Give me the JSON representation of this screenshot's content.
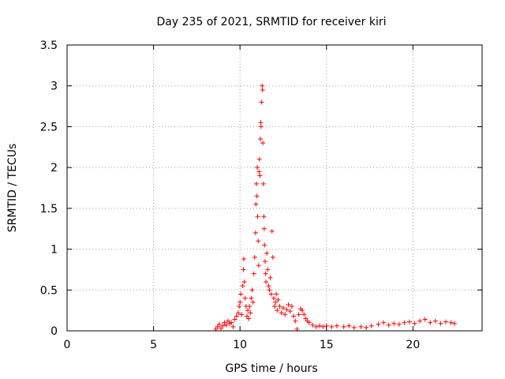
{
  "chart_data": {
    "type": "scatter",
    "title": "Day 235 of 2021, SRMTID for receiver kiri",
    "xlabel": "GPS time / hours",
    "ylabel": "SRMTID / TECUs",
    "xlim": [
      0,
      24
    ],
    "ylim": [
      0,
      3.5
    ],
    "xticks": [
      0,
      5,
      10,
      15,
      20
    ],
    "xtick_labels": [
      "0",
      "5",
      "10",
      "15",
      "20"
    ],
    "yticks": [
      0,
      0.5,
      1,
      1.5,
      2,
      2.5,
      3,
      3.5
    ],
    "ytick_labels": [
      "0",
      "0.5",
      "1",
      "1.5",
      "2",
      "2.5",
      "3",
      "3.5"
    ],
    "grid": true,
    "marker": "+",
    "color": "#ff0000",
    "series": [
      {
        "name": "kiri",
        "points": [
          [
            8.6,
            0.02
          ],
          [
            8.7,
            0.05
          ],
          [
            8.8,
            0.08
          ],
          [
            8.9,
            0.03
          ],
          [
            9.0,
            0.06
          ],
          [
            9.1,
            0.1
          ],
          [
            9.2,
            0.07
          ],
          [
            9.3,
            0.12
          ],
          [
            9.4,
            0.09
          ],
          [
            9.5,
            0.1
          ],
          [
            9.6,
            0.05
          ],
          [
            9.7,
            0.14
          ],
          [
            9.8,
            0.18
          ],
          [
            9.9,
            0.22
          ],
          [
            9.95,
            0.3
          ],
          [
            10.0,
            0.35
          ],
          [
            10.05,
            0.45
          ],
          [
            10.1,
            0.2
          ],
          [
            10.15,
            0.55
          ],
          [
            10.2,
            0.75
          ],
          [
            10.22,
            0.88
          ],
          [
            10.25,
            0.6
          ],
          [
            10.3,
            0.4
          ],
          [
            10.35,
            0.3
          ],
          [
            10.4,
            0.18
          ],
          [
            10.45,
            0.25
          ],
          [
            10.5,
            0.15
          ],
          [
            10.55,
            0.3
          ],
          [
            10.6,
            0.22
          ],
          [
            10.65,
            0.4
          ],
          [
            10.7,
            0.5
          ],
          [
            10.75,
            0.35
          ],
          [
            10.8,
            0.7
          ],
          [
            10.85,
            0.9
          ],
          [
            10.9,
            1.2
          ],
          [
            10.92,
            1.55
          ],
          [
            10.95,
            1.8
          ],
          [
            10.98,
            1.65
          ],
          [
            11.0,
            2.0
          ],
          [
            11.02,
            1.4
          ],
          [
            11.05,
            1.1
          ],
          [
            11.08,
            0.8
          ],
          [
            11.1,
            1.95
          ],
          [
            11.12,
            2.1
          ],
          [
            11.15,
            1.9
          ],
          [
            11.18,
            2.35
          ],
          [
            11.2,
            2.55
          ],
          [
            11.22,
            2.5
          ],
          [
            11.25,
            2.8
          ],
          [
            11.28,
            3.0
          ],
          [
            11.3,
            2.95
          ],
          [
            11.32,
            2.3
          ],
          [
            11.35,
            1.8
          ],
          [
            11.38,
            1.4
          ],
          [
            11.4,
            1.25
          ],
          [
            11.42,
            1.05
          ],
          [
            11.45,
            0.85
          ],
          [
            11.48,
            0.7
          ],
          [
            11.5,
            0.6
          ],
          [
            11.55,
            0.95
          ],
          [
            11.6,
            0.75
          ],
          [
            11.65,
            0.55
          ],
          [
            11.7,
            0.5
          ],
          [
            11.75,
            0.65
          ],
          [
            11.8,
            0.45
          ],
          [
            11.85,
            1.22
          ],
          [
            11.9,
            0.9
          ],
          [
            11.95,
            0.4
          ],
          [
            12.0,
            0.3
          ],
          [
            12.05,
            0.35
          ],
          [
            12.1,
            0.45
          ],
          [
            12.15,
            0.25
          ],
          [
            12.2,
            0.38
          ],
          [
            12.3,
            0.3
          ],
          [
            12.4,
            0.22
          ],
          [
            12.5,
            0.28
          ],
          [
            12.6,
            0.2
          ],
          [
            12.7,
            0.26
          ],
          [
            12.8,
            0.32
          ],
          [
            12.9,
            0.24
          ],
          [
            13.0,
            0.3
          ],
          [
            13.1,
            0.18
          ],
          [
            13.2,
            0.12
          ],
          [
            13.3,
            0.02
          ],
          [
            13.4,
            0.2
          ],
          [
            13.5,
            0.27
          ],
          [
            13.6,
            0.25
          ],
          [
            13.7,
            0.2
          ],
          [
            13.8,
            0.15
          ],
          [
            13.9,
            0.12
          ],
          [
            14.0,
            0.1
          ],
          [
            14.2,
            0.07
          ],
          [
            14.4,
            0.05
          ],
          [
            14.6,
            0.06
          ],
          [
            14.8,
            0.05
          ],
          [
            15.0,
            0.06
          ],
          [
            15.3,
            0.05
          ],
          [
            15.6,
            0.06
          ],
          [
            16.0,
            0.05
          ],
          [
            16.3,
            0.06
          ],
          [
            16.6,
            0.04
          ],
          [
            17.0,
            0.05
          ],
          [
            17.3,
            0.04
          ],
          [
            17.6,
            0.06
          ],
          [
            18.0,
            0.08
          ],
          [
            18.3,
            0.1
          ],
          [
            18.6,
            0.07
          ],
          [
            18.9,
            0.09
          ],
          [
            19.2,
            0.08
          ],
          [
            19.5,
            0.1
          ],
          [
            19.8,
            0.11
          ],
          [
            20.1,
            0.09
          ],
          [
            20.4,
            0.12
          ],
          [
            20.7,
            0.14
          ],
          [
            21.0,
            0.1
          ],
          [
            21.3,
            0.12
          ],
          [
            21.6,
            0.09
          ],
          [
            21.9,
            0.11
          ],
          [
            22.2,
            0.1
          ],
          [
            22.4,
            0.09
          ]
        ]
      }
    ]
  }
}
